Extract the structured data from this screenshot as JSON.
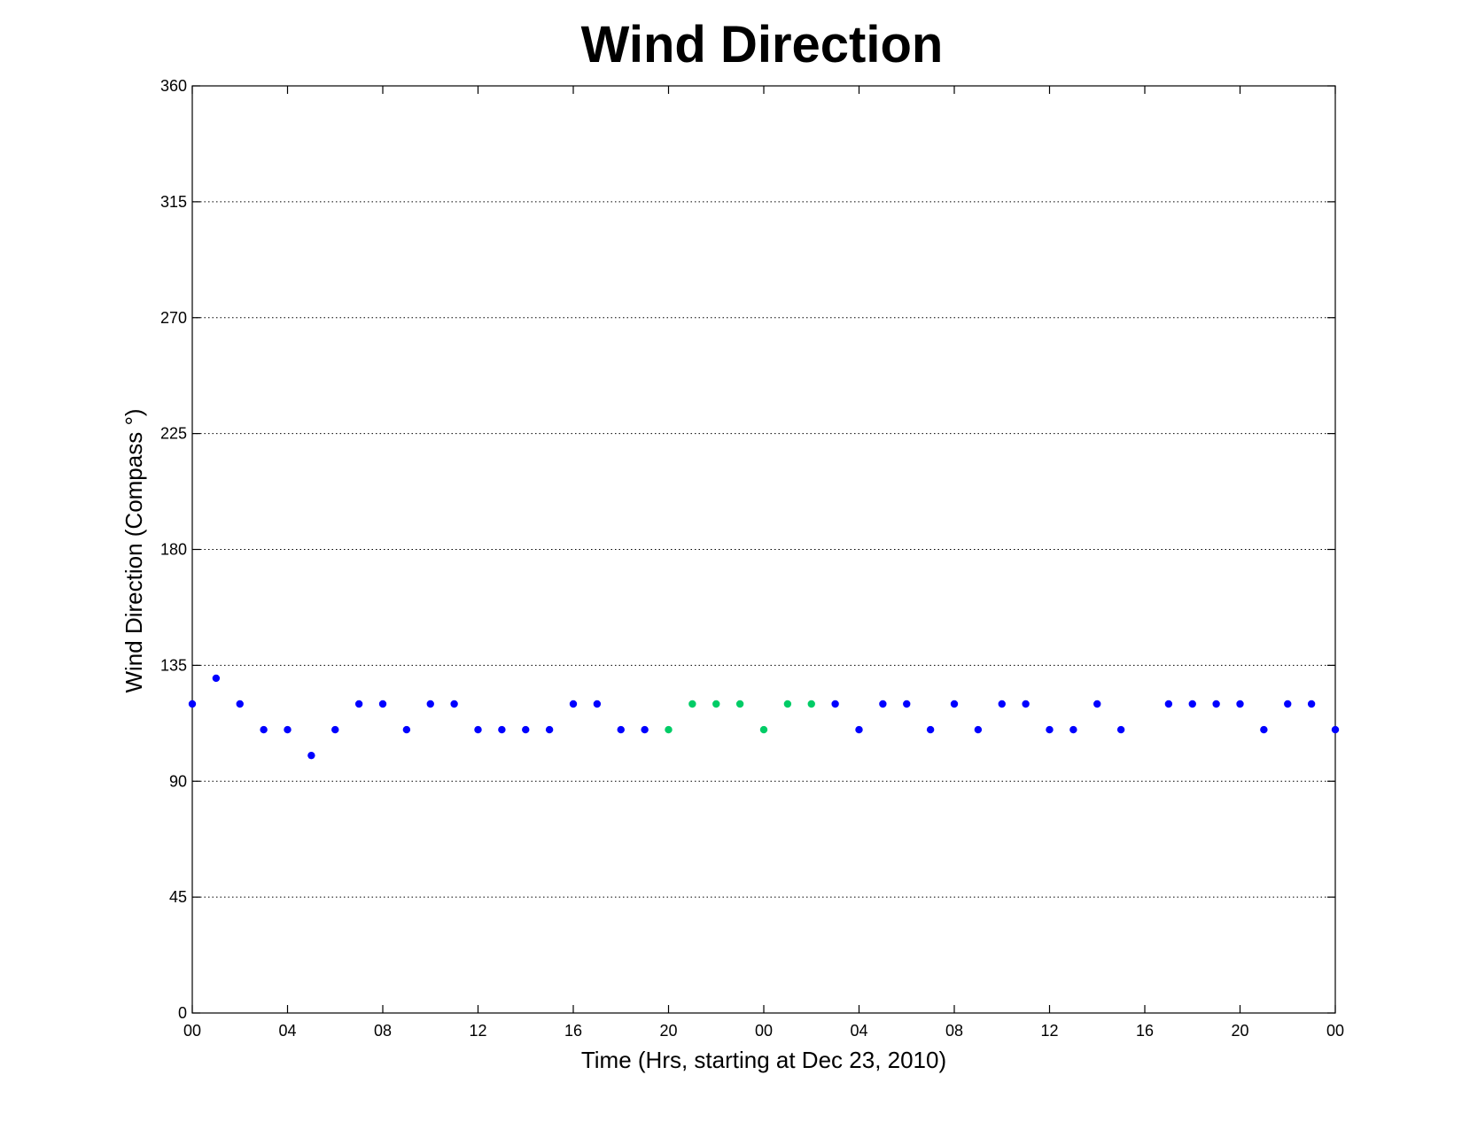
{
  "chart_data": {
    "type": "scatter",
    "title": "Wind Direction",
    "xlabel": "Time (Hrs, starting at Dec 23, 2010)",
    "ylabel": "Wind Direction (Compass  °)",
    "xlim": [
      0,
      48
    ],
    "ylim": [
      0,
      360
    ],
    "x_ticks": [
      0,
      4,
      8,
      12,
      16,
      20,
      24,
      28,
      32,
      36,
      40,
      44,
      48
    ],
    "x_tick_labels": [
      "00",
      "04",
      "08",
      "12",
      "16",
      "20",
      "00",
      "04",
      "08",
      "12",
      "16",
      "20",
      "00"
    ],
    "y_ticks": [
      0,
      45,
      90,
      135,
      180,
      225,
      270,
      315,
      360
    ],
    "y_tick_labels": [
      "0",
      "45",
      "90",
      "135",
      "180",
      "225",
      "270",
      "315",
      "360"
    ],
    "grid": "horizontal dotted",
    "colors": {
      "blue": "#0000ff",
      "green": "#00cc66"
    },
    "points": [
      {
        "x": 0,
        "y": 120,
        "color": "blue"
      },
      {
        "x": 1,
        "y": 130,
        "color": "blue"
      },
      {
        "x": 2,
        "y": 120,
        "color": "blue"
      },
      {
        "x": 3,
        "y": 110,
        "color": "blue"
      },
      {
        "x": 4,
        "y": 110,
        "color": "blue"
      },
      {
        "x": 5,
        "y": 100,
        "color": "blue"
      },
      {
        "x": 6,
        "y": 110,
        "color": "blue"
      },
      {
        "x": 7,
        "y": 120,
        "color": "blue"
      },
      {
        "x": 8,
        "y": 120,
        "color": "blue"
      },
      {
        "x": 9,
        "y": 110,
        "color": "blue"
      },
      {
        "x": 10,
        "y": 120,
        "color": "blue"
      },
      {
        "x": 11,
        "y": 120,
        "color": "blue"
      },
      {
        "x": 12,
        "y": 110,
        "color": "blue"
      },
      {
        "x": 13,
        "y": 110,
        "color": "blue"
      },
      {
        "x": 14,
        "y": 110,
        "color": "blue"
      },
      {
        "x": 15,
        "y": 110,
        "color": "blue"
      },
      {
        "x": 16,
        "y": 120,
        "color": "blue"
      },
      {
        "x": 17,
        "y": 120,
        "color": "blue"
      },
      {
        "x": 18,
        "y": 110,
        "color": "blue"
      },
      {
        "x": 19,
        "y": 110,
        "color": "blue"
      },
      {
        "x": 20,
        "y": 110,
        "color": "green"
      },
      {
        "x": 21,
        "y": 120,
        "color": "green"
      },
      {
        "x": 22,
        "y": 120,
        "color": "green"
      },
      {
        "x": 23,
        "y": 120,
        "color": "green"
      },
      {
        "x": 24,
        "y": 110,
        "color": "green"
      },
      {
        "x": 25,
        "y": 120,
        "color": "green"
      },
      {
        "x": 26,
        "y": 120,
        "color": "green"
      },
      {
        "x": 27,
        "y": 120,
        "color": "blue"
      },
      {
        "x": 28,
        "y": 110,
        "color": "blue"
      },
      {
        "x": 29,
        "y": 120,
        "color": "blue"
      },
      {
        "x": 30,
        "y": 120,
        "color": "blue"
      },
      {
        "x": 31,
        "y": 110,
        "color": "blue"
      },
      {
        "x": 32,
        "y": 120,
        "color": "blue"
      },
      {
        "x": 33,
        "y": 110,
        "color": "blue"
      },
      {
        "x": 34,
        "y": 120,
        "color": "blue"
      },
      {
        "x": 35,
        "y": 120,
        "color": "blue"
      },
      {
        "x": 36,
        "y": 110,
        "color": "blue"
      },
      {
        "x": 37,
        "y": 110,
        "color": "blue"
      },
      {
        "x": 38,
        "y": 120,
        "color": "blue"
      },
      {
        "x": 39,
        "y": 110,
        "color": "blue"
      },
      {
        "x": 41,
        "y": 120,
        "color": "blue"
      },
      {
        "x": 42,
        "y": 120,
        "color": "blue"
      },
      {
        "x": 43,
        "y": 120,
        "color": "blue"
      },
      {
        "x": 44,
        "y": 120,
        "color": "blue"
      },
      {
        "x": 45,
        "y": 110,
        "color": "blue"
      },
      {
        "x": 46,
        "y": 120,
        "color": "blue"
      },
      {
        "x": 47,
        "y": 120,
        "color": "blue"
      },
      {
        "x": 48,
        "y": 110,
        "color": "blue"
      }
    ]
  }
}
